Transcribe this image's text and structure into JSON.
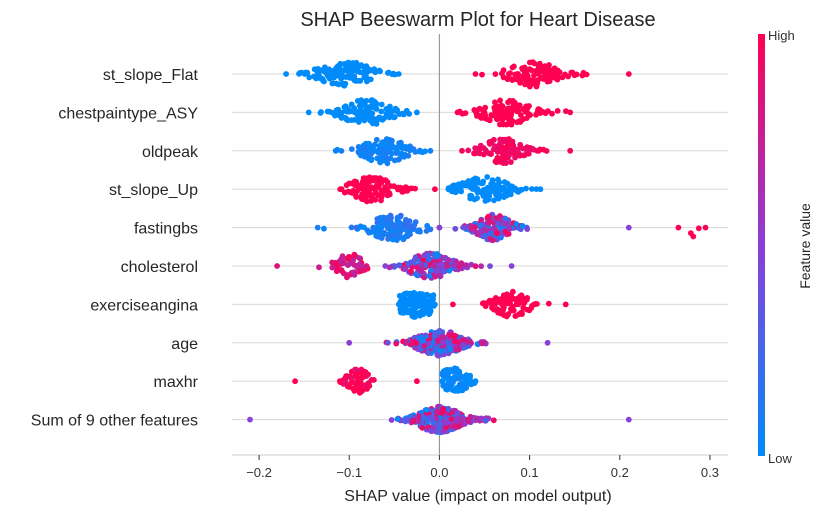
{
  "chart_data": {
    "type": "scatter",
    "subtype": "beeswarm",
    "title": "SHAP Beeswarm Plot for Heart Disease",
    "xlabel": "SHAP value (impact on model output)",
    "ylabel": "",
    "xlim": [
      -0.23,
      0.32
    ],
    "x_ticks": [
      -0.2,
      -0.1,
      0.0,
      0.1,
      0.2,
      0.3
    ],
    "x_tick_labels": [
      "−0.2",
      "−0.1",
      "0.0",
      "0.1",
      "0.2",
      "0.3"
    ],
    "grid": "horizontal",
    "colorbar": {
      "title": "Feature value",
      "high_label": "High",
      "low_label": "Low",
      "colors": [
        "#008bfb",
        "#ff0052"
      ]
    },
    "features": [
      {
        "name": "st_slope_Flat",
        "groups": [
          {
            "center": -0.105,
            "min": -0.17,
            "max": -0.045,
            "width": 0.024,
            "fv": 0.0,
            "spread": 0.0,
            "n": 130
          },
          {
            "center": 0.105,
            "min": 0.04,
            "max": 0.21,
            "width": 0.022,
            "fv": 1.0,
            "spread": 0.0,
            "n": 110
          }
        ]
      },
      {
        "name": "chestpaintype_ASY",
        "groups": [
          {
            "center": -0.08,
            "min": -0.145,
            "max": -0.025,
            "width": 0.022,
            "fv": 0.0,
            "spread": 0.0,
            "n": 120
          },
          {
            "center": 0.075,
            "min": 0.02,
            "max": 0.145,
            "width": 0.022,
            "fv": 1.0,
            "spread": 0.0,
            "n": 120
          }
        ]
      },
      {
        "name": "oldpeak",
        "groups": [
          {
            "center": -0.06,
            "min": -0.115,
            "max": -0.01,
            "width": 0.02,
            "fv": 0.05,
            "spread": 0.05,
            "n": 110
          },
          {
            "center": 0.07,
            "min": 0.025,
            "max": 0.145,
            "width": 0.018,
            "fv": 0.95,
            "spread": 0.05,
            "n": 110
          }
        ]
      },
      {
        "name": "st_slope_Up",
        "groups": [
          {
            "center": -0.075,
            "min": -0.11,
            "max": -0.005,
            "width": 0.02,
            "fv": 1.0,
            "spread": 0.0,
            "n": 110
          },
          {
            "center": 0.05,
            "min": 0.01,
            "max": 0.112,
            "width": 0.022,
            "fv": 0.0,
            "spread": 0.0,
            "n": 120
          }
        ]
      },
      {
        "name": "fastingbs",
        "groups": [
          {
            "center": -0.05,
            "min": -0.135,
            "max": 0.0,
            "width": 0.022,
            "fv": 0.1,
            "spread": 0.1,
            "n": 120
          },
          {
            "center": 0.06,
            "min": 0.0,
            "max": 0.21,
            "width": 0.016,
            "fv": 0.5,
            "spread": 0.5,
            "n": 140
          },
          {
            "center": 0.28,
            "min": 0.265,
            "max": 0.295,
            "width": 0.002,
            "fv": 1.0,
            "spread": 0.0,
            "n": 3
          }
        ]
      },
      {
        "name": "cholesterol",
        "groups": [
          {
            "center": -0.1,
            "min": -0.18,
            "max": -0.05,
            "width": 0.012,
            "fv": 0.85,
            "spread": 0.15,
            "n": 50
          },
          {
            "center": -0.01,
            "min": -0.06,
            "max": 0.08,
            "width": 0.02,
            "fv": 0.5,
            "spread": 0.5,
            "n": 170
          }
        ]
      },
      {
        "name": "exerciseangina",
        "groups": [
          {
            "center": -0.025,
            "min": -0.045,
            "max": -0.005,
            "width": 0.022,
            "fv": 0.0,
            "spread": 0.0,
            "n": 130
          },
          {
            "center": 0.08,
            "min": 0.015,
            "max": 0.14,
            "width": 0.016,
            "fv": 1.0,
            "spread": 0.0,
            "n": 90
          }
        ]
      },
      {
        "name": "age",
        "groups": [
          {
            "center": 0.0,
            "min": -0.1,
            "max": 0.12,
            "width": 0.02,
            "fv": 0.5,
            "spread": 0.5,
            "n": 230
          }
        ]
      },
      {
        "name": "maxhr",
        "groups": [
          {
            "center": -0.09,
            "min": -0.16,
            "max": -0.025,
            "width": 0.01,
            "fv": 1.0,
            "spread": 0.12,
            "n": 70
          },
          {
            "center": 0.015,
            "min": 0.003,
            "max": 0.04,
            "width": 0.016,
            "fv": 0.0,
            "spread": 0.05,
            "n": 80
          }
        ]
      },
      {
        "name": "Sum of 9 other features",
        "groups": [
          {
            "center": 0.0,
            "min": -0.21,
            "max": 0.21,
            "width": 0.02,
            "fv": 0.5,
            "spread": 0.5,
            "n": 260
          }
        ]
      }
    ]
  }
}
